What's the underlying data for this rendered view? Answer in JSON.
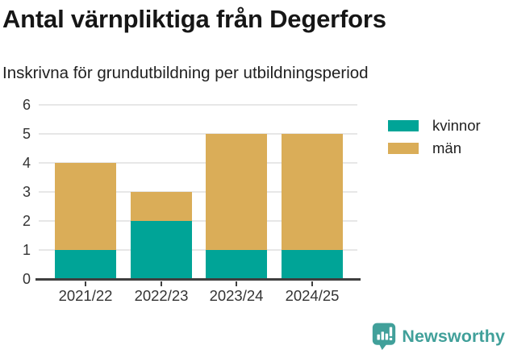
{
  "header": {
    "title": "Antal värnpliktiga från Degerfors",
    "subtitle": "Inskrivna för grundutbildning per utbildningsperiod"
  },
  "chart_data": {
    "type": "bar",
    "stacked": true,
    "title": "Antal värnpliktiga från Degerfors",
    "subtitle": "Inskrivna för grundutbildning per utbildningsperiod",
    "categories": [
      "2021/22",
      "2022/23",
      "2023/24",
      "2024/25"
    ],
    "series": [
      {
        "name": "kvinnor",
        "color": "#00A497",
        "values": [
          1,
          2,
          1,
          1
        ]
      },
      {
        "name": "män",
        "color": "#DAAD58",
        "values": [
          3,
          1,
          4,
          4
        ]
      }
    ],
    "stack_totals": [
      4,
      3,
      5,
      5
    ],
    "xlabel": "",
    "ylabel": "",
    "ylim": [
      0,
      6
    ],
    "yticks": [
      0,
      1,
      2,
      3,
      4,
      5,
      6
    ],
    "grid": true,
    "legend_position": "right"
  },
  "footer": {
    "brand_name": "Newsworthy",
    "brand_color": "#41A09A"
  },
  "colors": {
    "background": "#ffffff",
    "title_text": "#161616",
    "axis_text": "#333333",
    "gridline": "#e7e7e7",
    "axis_line": "#3f3f3f"
  }
}
